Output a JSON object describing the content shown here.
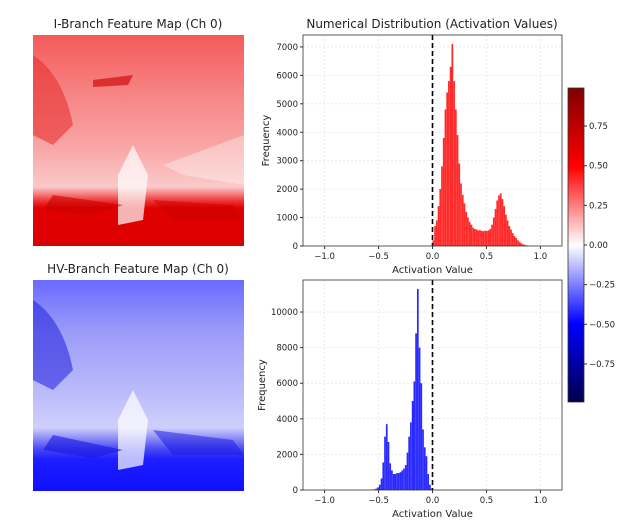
{
  "panels": {
    "i_branch_title": "I-Branch Feature Map (Ch 0)",
    "hv_branch_title": "HV-Branch Feature Map (Ch 0)",
    "hist_title": "Numerical Distribution (Activation Values)"
  },
  "colorbar": {
    "colormap": "seismic",
    "range": [
      -0.99,
      0.99
    ],
    "ticks": [
      "0.75",
      "0.50",
      "0.25",
      "0.00",
      "−0.25",
      "−0.50",
      "−0.75"
    ],
    "tick_values": [
      0.75,
      0.5,
      0.25,
      0,
      -0.25,
      -0.5,
      -0.75
    ]
  },
  "chart_data": [
    {
      "type": "bar",
      "title": "Numerical Distribution (Activation Values)",
      "xlabel": "Activation Value",
      "ylabel": "Frequency",
      "xlim": [
        -1.2,
        1.2
      ],
      "ylim": [
        0,
        7420
      ],
      "xticks": [
        "−1.0",
        "−0.5",
        "0.0",
        "0.5",
        "1.0"
      ],
      "xtick_values": [
        -1.0,
        -0.5,
        0.0,
        0.5,
        1.0
      ],
      "yticks": [
        "0",
        "1000",
        "2000",
        "3000",
        "4000",
        "5000",
        "6000",
        "7000"
      ],
      "ytick_values": [
        0,
        1000,
        2000,
        3000,
        4000,
        5000,
        6000,
        7000
      ],
      "grid": true,
      "color": "#ff2a2a",
      "reference_line": 0,
      "bin_start": 0.0,
      "bin_width": 0.016,
      "values": [
        200,
        700,
        900,
        1400,
        2000,
        2800,
        3800,
        4800,
        5400,
        5800,
        6300,
        7100,
        5800,
        4800,
        3900,
        2900,
        2200,
        1800,
        1500,
        1200,
        1000,
        850,
        750,
        650,
        600,
        580,
        550,
        560,
        530,
        520,
        540,
        530,
        550,
        600,
        750,
        1000,
        1300,
        1600,
        1780,
        1850,
        1650,
        1400,
        1100,
        900,
        700,
        580,
        450,
        350,
        280,
        200,
        140,
        90,
        60,
        40,
        20,
        10,
        5,
        2
      ]
    },
    {
      "type": "bar",
      "xlabel": "Activation Value",
      "ylabel": "Frequency",
      "xlim": [
        -1.2,
        1.2
      ],
      "ylim": [
        0,
        11800
      ],
      "xticks": [
        "−1.0",
        "−0.5",
        "0.0",
        "0.5",
        "1.0"
      ],
      "xtick_values": [
        -1.0,
        -0.5,
        0.0,
        0.5,
        1.0
      ],
      "yticks": [
        "0",
        "2000",
        "4000",
        "6000",
        "8000",
        "10000"
      ],
      "ytick_values": [
        0,
        2000,
        4000,
        6000,
        8000,
        10000
      ],
      "grid": true,
      "color": "#2a2aff",
      "reference_line": 0,
      "bin_start": -0.56,
      "bin_width": 0.016,
      "values": [
        20,
        40,
        80,
        150,
        300,
        650,
        1550,
        3000,
        3700,
        2700,
        1500,
        1100,
        900,
        900,
        950,
        950,
        1000,
        1100,
        1200,
        1400,
        2100,
        3000,
        3800,
        5000,
        6100,
        8800,
        11300,
        8000,
        6000,
        3400,
        2400,
        1900,
        900,
        300,
        80
      ]
    }
  ]
}
